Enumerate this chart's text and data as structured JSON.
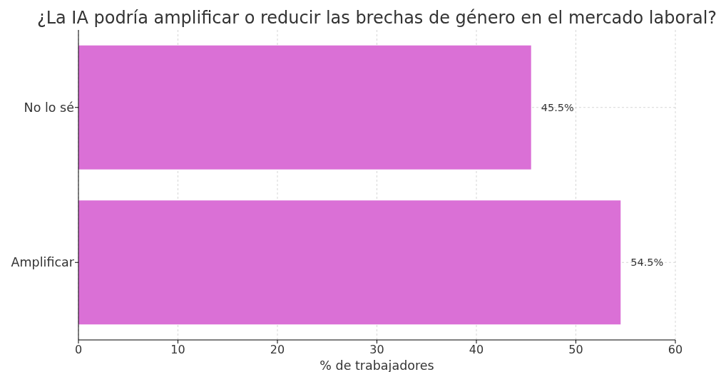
{
  "chart_data": {
    "type": "bar",
    "orientation": "horizontal",
    "title": "¿La IA podría amplificar o reducir las brechas de género en el mercado laboral?",
    "xlabel": "% de trabajadores",
    "categories": [
      "No lo sé",
      "Amplificar"
    ],
    "values": [
      45.5,
      54.5
    ],
    "color": "#da70d6",
    "value_labels": [
      "45.5%",
      "54.5%"
    ],
    "xlim": [
      0,
      60
    ],
    "xticks": [
      0,
      10,
      20,
      30,
      40,
      50,
      60
    ],
    "grid": true
  }
}
